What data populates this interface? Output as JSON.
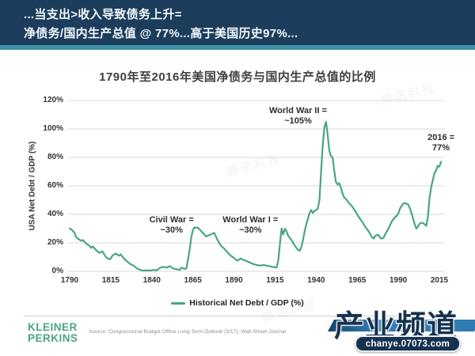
{
  "header": {
    "line1": "...当支出>收入导致债务上升=",
    "line2": "净债务/国内生产总值 @ 77%...高于美国历史97%..."
  },
  "chart_data": {
    "type": "line",
    "title": "1790年至2016年美国净债务与国内生产总值的比例",
    "xlabel": "",
    "ylabel": "USA Net Debt / GDP (%)",
    "xlim": [
      1790,
      2016
    ],
    "ylim": [
      0,
      120
    ],
    "grid": "horizontal-only",
    "xticks": [
      1790,
      1815,
      1840,
      1865,
      1890,
      1915,
      1940,
      1965,
      1990,
      2015
    ],
    "yticks": [
      "0%",
      "20%",
      "40%",
      "60%",
      "80%",
      "100%",
      "120%"
    ],
    "legend": {
      "position": "bottom-center",
      "entries": [
        {
          "label": "Historical Net Debt / GDP (%)",
          "color": "#4aa583"
        }
      ]
    },
    "series": [
      {
        "name": "Historical Net Debt / GDP (%)",
        "color": "#4aa583",
        "points": [
          [
            1790,
            30
          ],
          [
            1791,
            29.5
          ],
          [
            1793,
            27
          ],
          [
            1794,
            24
          ],
          [
            1795,
            23
          ],
          [
            1797,
            21.5
          ],
          [
            1798,
            22
          ],
          [
            1800,
            19.5
          ],
          [
            1802,
            18
          ],
          [
            1803,
            16.5
          ],
          [
            1804,
            17.5
          ],
          [
            1806,
            15
          ],
          [
            1808,
            13
          ],
          [
            1810,
            14
          ],
          [
            1812,
            10
          ],
          [
            1814,
            8.5
          ],
          [
            1815,
            9
          ],
          [
            1816,
            11
          ],
          [
            1818,
            12.5
          ],
          [
            1820,
            11
          ],
          [
            1821,
            12
          ],
          [
            1823,
            9
          ],
          [
            1825,
            7
          ],
          [
            1827,
            5
          ],
          [
            1829,
            4
          ],
          [
            1831,
            2
          ],
          [
            1833,
            1
          ],
          [
            1835,
            0.5
          ],
          [
            1837,
            0.8
          ],
          [
            1839,
            0.5
          ],
          [
            1841,
            1
          ],
          [
            1843,
            0.8
          ],
          [
            1845,
            2.5
          ],
          [
            1847,
            3.2
          ],
          [
            1849,
            2.6
          ],
          [
            1851,
            3.6
          ],
          [
            1853,
            2
          ],
          [
            1855,
            1.5
          ],
          [
            1857,
            1
          ],
          [
            1858,
            2.5
          ],
          [
            1860,
            1.8
          ],
          [
            1861,
            2
          ],
          [
            1862,
            8
          ],
          [
            1863,
            15
          ],
          [
            1864,
            24
          ],
          [
            1865,
            29
          ],
          [
            1866,
            31
          ],
          [
            1867,
            30.5
          ],
          [
            1868,
            30.8
          ],
          [
            1869,
            29.5
          ],
          [
            1871,
            27
          ],
          [
            1873,
            24.5
          ],
          [
            1875,
            25.5
          ],
          [
            1877,
            26.5
          ],
          [
            1878,
            27
          ],
          [
            1880,
            22
          ],
          [
            1882,
            18
          ],
          [
            1884,
            16
          ],
          [
            1886,
            13.5
          ],
          [
            1888,
            11
          ],
          [
            1890,
            9.5
          ],
          [
            1892,
            7.5
          ],
          [
            1894,
            9
          ],
          [
            1896,
            8
          ],
          [
            1898,
            7
          ],
          [
            1900,
            6
          ],
          [
            1902,
            5
          ],
          [
            1904,
            4.5
          ],
          [
            1906,
            4
          ],
          [
            1908,
            4.5
          ],
          [
            1910,
            4
          ],
          [
            1912,
            3.5
          ],
          [
            1914,
            3
          ],
          [
            1916,
            2.8
          ],
          [
            1917,
            8
          ],
          [
            1918,
            20
          ],
          [
            1919,
            30
          ],
          [
            1920,
            26
          ],
          [
            1921,
            30
          ],
          [
            1922,
            28
          ],
          [
            1923,
            25
          ],
          [
            1925,
            22
          ],
          [
            1927,
            18
          ],
          [
            1929,
            15
          ],
          [
            1930,
            14.5
          ],
          [
            1931,
            17
          ],
          [
            1932,
            22
          ],
          [
            1933,
            28
          ],
          [
            1934,
            33
          ],
          [
            1935,
            37
          ],
          [
            1936,
            41
          ],
          [
            1937,
            43
          ],
          [
            1938,
            41
          ],
          [
            1939,
            42.5
          ],
          [
            1940,
            43
          ],
          [
            1941,
            44
          ],
          [
            1942,
            50
          ],
          [
            1943,
            70
          ],
          [
            1944,
            88
          ],
          [
            1945,
            101
          ],
          [
            1946,
            105
          ],
          [
            1947,
            96
          ],
          [
            1948,
            85
          ],
          [
            1949,
            81
          ],
          [
            1950,
            80
          ],
          [
            1951,
            71
          ],
          [
            1952,
            63
          ],
          [
            1953,
            61
          ],
          [
            1954,
            62
          ],
          [
            1955,
            59
          ],
          [
            1956,
            55
          ],
          [
            1957,
            52
          ],
          [
            1958,
            51
          ],
          [
            1960,
            48
          ],
          [
            1962,
            45.5
          ],
          [
            1964,
            42
          ],
          [
            1966,
            38
          ],
          [
            1968,
            35
          ],
          [
            1970,
            31
          ],
          [
            1972,
            28
          ],
          [
            1974,
            24
          ],
          [
            1975,
            23
          ],
          [
            1976,
            25
          ],
          [
            1977,
            25.5
          ],
          [
            1978,
            25.5
          ],
          [
            1979,
            23.5
          ],
          [
            1980,
            23
          ],
          [
            1981,
            23.5
          ],
          [
            1982,
            26
          ],
          [
            1984,
            30
          ],
          [
            1986,
            35
          ],
          [
            1988,
            38
          ],
          [
            1989,
            39
          ],
          [
            1990,
            40.5
          ],
          [
            1991,
            44
          ],
          [
            1992,
            46
          ],
          [
            1993,
            47.5
          ],
          [
            1994,
            48
          ],
          [
            1995,
            47.5
          ],
          [
            1996,
            47
          ],
          [
            1997,
            44.5
          ],
          [
            1998,
            41
          ],
          [
            1999,
            37
          ],
          [
            2000,
            33
          ],
          [
            2001,
            30
          ],
          [
            2002,
            31.5
          ],
          [
            2003,
            33.5
          ],
          [
            2004,
            34
          ],
          [
            2005,
            34
          ],
          [
            2006,
            33
          ],
          [
            2007,
            32
          ],
          [
            2008,
            38
          ],
          [
            2009,
            51
          ],
          [
            2010,
            59
          ],
          [
            2011,
            64
          ],
          [
            2012,
            69
          ],
          [
            2013,
            71
          ],
          [
            2014,
            74
          ],
          [
            2015,
            73.5
          ],
          [
            2016,
            77
          ]
        ]
      }
    ],
    "annotations": [
      {
        "lines": [
          "Civil War =",
          "~30%"
        ],
        "anchor_year": 1852,
        "anchor_pct": 32
      },
      {
        "lines": [
          "World War I =",
          "~30%"
        ],
        "anchor_year": 1900,
        "anchor_pct": 32
      },
      {
        "lines": [
          "World War II =",
          "~105%"
        ],
        "anchor_year": 1929,
        "anchor_pct": 109
      },
      {
        "lines": [
          "2016 =",
          "77%"
        ],
        "anchor_year": 2016,
        "anchor_pct": 90
      }
    ]
  },
  "footer": {
    "logo_line1": "KLEINER",
    "logo_line2": "PERKINS",
    "source": "Source: Congressional Budget Office Long-Term Outlook (3/17), Wall Street Journal"
  },
  "watermark": {
    "big_text": "产业频道",
    "site": "chanye.07073.com"
  },
  "faint_stamp_text": "腾讯科技",
  "colors": {
    "header_bg": "#1c3d5c",
    "header_strip": "#3e93a8",
    "line": "#4aa583",
    "logo": "#4aa583",
    "watermark_navy": "#16324f",
    "watermark_blue": "#2e7cb3"
  }
}
